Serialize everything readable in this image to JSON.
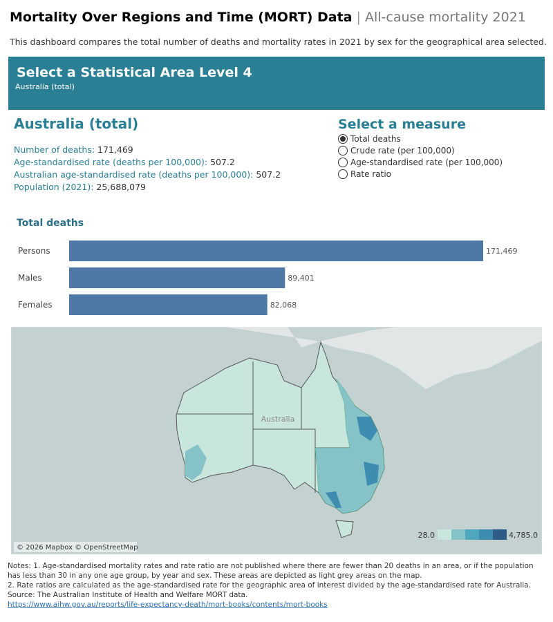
{
  "header": {
    "title": "Mortality Over Regions and Time (MORT) Data",
    "subtitle": "All-cause mortality",
    "year": "2021",
    "description": "This dashboard compares the total number of deaths and mortality rates in 2021 by sex for the geographical area selected."
  },
  "banner": {
    "title": "Select a Statistical Area Level 4",
    "selection": "Australia (total)"
  },
  "summary": {
    "area": "Australia (total)",
    "items": [
      {
        "label": "Number of deaths:",
        "value": "171,469"
      },
      {
        "label": "Age-standardised rate (deaths per 100,000):",
        "value": "507.2"
      },
      {
        "label": "Australian age-standardised rate (deaths per 100,000):",
        "value": "507.2"
      },
      {
        "label": "Population (2021):",
        "value": "25,688,079"
      }
    ]
  },
  "measure": {
    "title": "Select a measure",
    "options": [
      "Total deaths",
      "Crude rate (per 100,000)",
      "Age-standardised rate (per 100,000)",
      "Rate ratio"
    ],
    "selected": 0
  },
  "chart_data": {
    "type": "bar",
    "orientation": "horizontal",
    "title": "Total deaths",
    "categories": [
      "Persons",
      "Males",
      "Females"
    ],
    "values": [
      171469,
      89401,
      82068
    ],
    "value_labels": [
      "171,469",
      "89,401",
      "82,068"
    ],
    "color": "#4e79a7"
  },
  "map": {
    "label": "Australia",
    "attribution": "© 2026 Mapbox © OpenStreetMap",
    "legend_min": "28.0",
    "legend_max": "4,785.0"
  },
  "notes": {
    "note1": "Notes: 1. Age-standardised mortality rates and rate ratio are not published where there are fewer than 20 deaths in an area, or if the population has less than 30 in any one age group, by year and sex. These areas are depicted as light grey areas on the map.",
    "note2": "2. Rate ratios are calculated as the age-standardised rate for the geographic area of interest divided by the age-standardised rate for Australia.",
    "source": "Source: The Australian Institute of Health and Welfare MORT data.",
    "link": "https://www.aihw.gov.au/reports/life-expectancy-death/mort-books/contents/mort-books"
  }
}
